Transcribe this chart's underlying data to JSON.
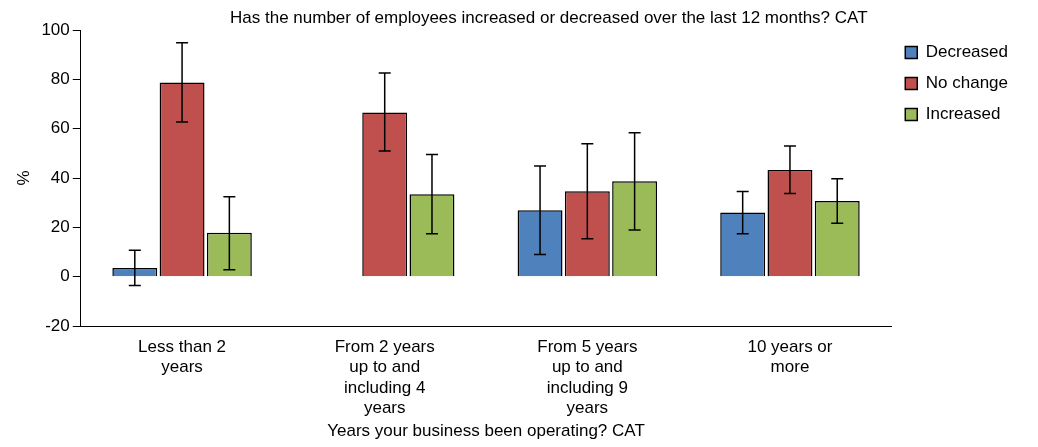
{
  "chart_data": {
    "type": "bar",
    "title": "Has the number of employees increased or decreased over the last 12 months? CAT",
    "xlabel": "Years your business been operating? CAT",
    "ylabel": "%",
    "categories": [
      "Less than 2 years",
      "From 2 years up to and including 4 years",
      "From 5 years up to and including 9 years",
      "10 years or more"
    ],
    "series": [
      {
        "name": "Decreased",
        "color": "#4f81bd",
        "values": [
          3.5,
          0,
          26.9,
          26.0
        ],
        "errors": [
          [
            -3.6,
            10.7
          ],
          null,
          [
            9.0,
            44.9
          ],
          [
            17.4,
            34.5
          ]
        ]
      },
      {
        "name": "No change",
        "color": "#c0504d",
        "values": [
          78.7,
          66.6,
          34.6,
          43.2
        ],
        "errors": [
          [
            62.7,
            94.8
          ],
          [
            50.9,
            82.6
          ],
          [
            15.4,
            53.9
          ],
          [
            33.7,
            53.0
          ]
        ]
      },
      {
        "name": "Increased",
        "color": "#9bbb59",
        "values": [
          17.8,
          33.4,
          38.7,
          30.7
        ],
        "errors": [
          [
            2.8,
            32.4
          ],
          [
            17.4,
            49.5
          ],
          [
            18.9,
            58.3
          ],
          [
            21.7,
            39.7
          ]
        ]
      }
    ],
    "ylim": [
      -20,
      100
    ],
    "yticks": [
      -20,
      0,
      20,
      40,
      60,
      80,
      100
    ],
    "grid": false,
    "legend": "right"
  }
}
